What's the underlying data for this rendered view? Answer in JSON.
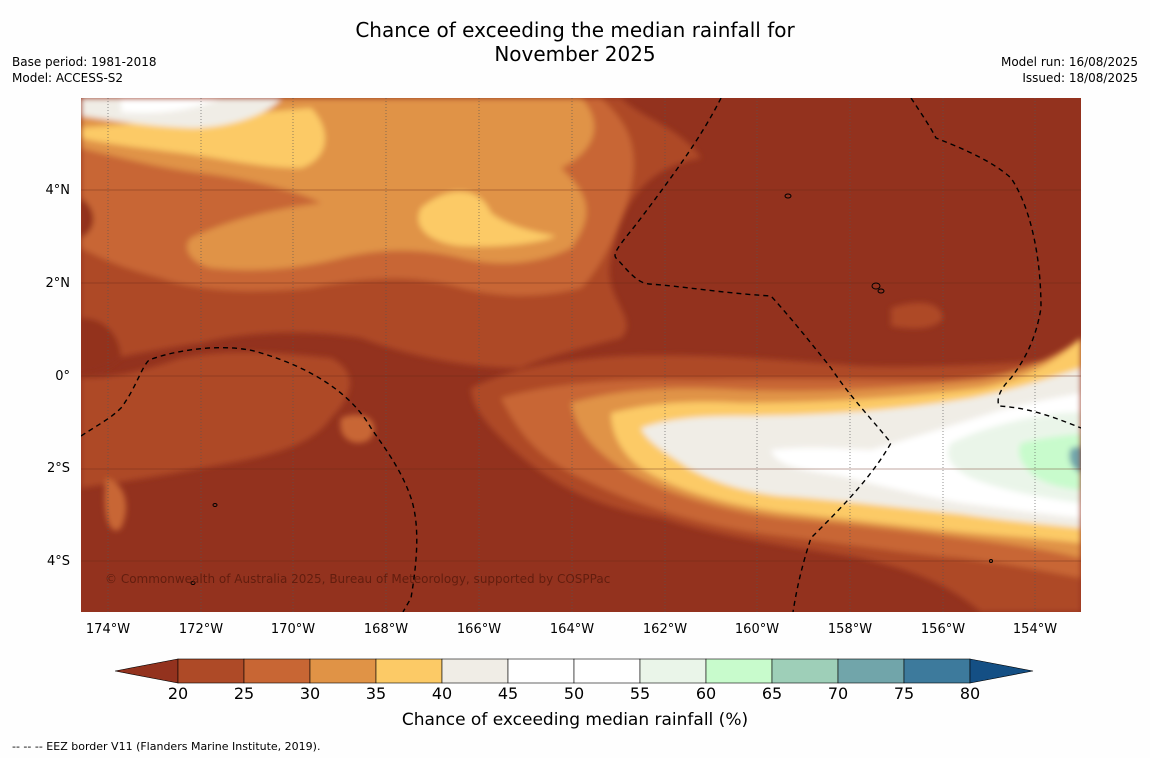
{
  "title_line1": "Chance of exceeding the median rainfall for",
  "title_line2": "November 2025",
  "meta_left": {
    "base_period": "Base period: 1981-2018",
    "model": "Model: ACCESS-S2"
  },
  "meta_right": {
    "model_run": "Model run: 16/08/2025",
    "issued": "Issued: 18/08/2025"
  },
  "credit": "© Commonwealth of Australia 2025, Bureau of Meteorology, supported by COSPPac",
  "lat_labels": [
    "4°N",
    "2°N",
    "0°",
    "2°S",
    "4°S"
  ],
  "lon_labels": [
    "174°W",
    "172°W",
    "170°W",
    "168°W",
    "166°W",
    "164°W",
    "162°W",
    "160°W",
    "158°W",
    "156°W",
    "154°W"
  ],
  "colorbar": {
    "ticks": [
      "20",
      "25",
      "30",
      "35",
      "40",
      "45",
      "50",
      "55",
      "60",
      "65",
      "70",
      "75",
      "80"
    ],
    "colors": [
      "#93321e",
      "#ae4a27",
      "#c86634",
      "#e09346",
      "#fcca66",
      "#f0ede6",
      "#ffffff",
      "#ffffff",
      "#eaf5e9",
      "#c8fbcc",
      "#9ecfb8",
      "#71a5aa",
      "#3d7a9c",
      "#144f84"
    ],
    "label": "Chance of exceeding median rainfall (%)"
  },
  "footnote": "--  --  -- EEZ border V11 (Flanders Marine Institute, 2019)."
}
